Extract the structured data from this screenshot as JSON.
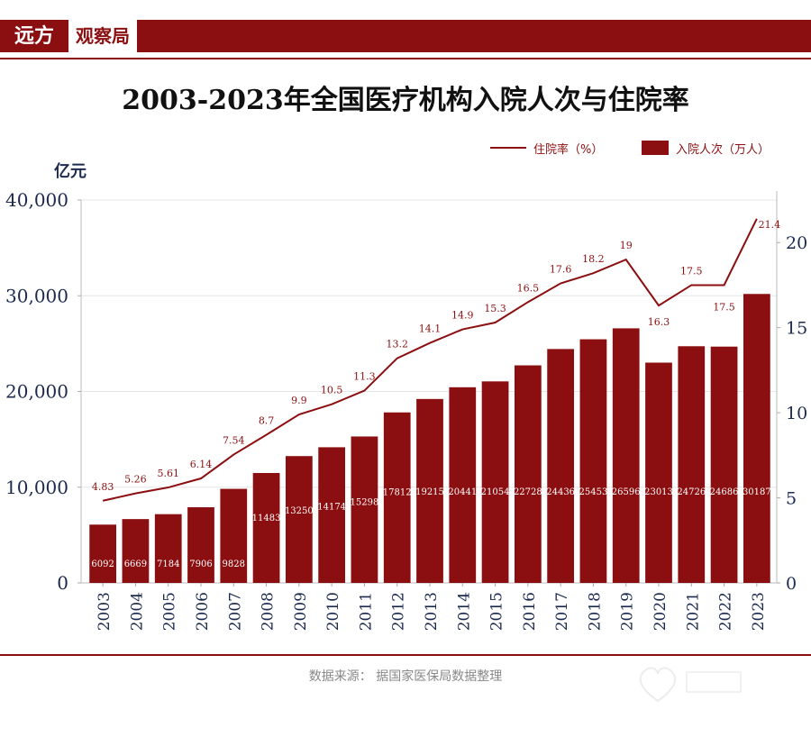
{
  "brand": {
    "part1": "远方",
    "part2": "观察局"
  },
  "legend": {
    "line_label": "住院率（%）",
    "bar_label": "入院人次（万人）"
  },
  "unit_label": "亿元",
  "source": "数据来源：  据国家医保局数据整理",
  "colors": {
    "accent": "#8b0f10",
    "axis_text": "#1b2a4e"
  },
  "chart_data": {
    "type": "bar",
    "title": "2003-2023年全国医疗机构入院人次与住院率",
    "categories": [
      "2003",
      "2004",
      "2005",
      "2006",
      "2007",
      "2008",
      "2009",
      "2010",
      "2011",
      "2012",
      "2013",
      "2014",
      "2015",
      "2016",
      "2017",
      "2018",
      "2019",
      "2020",
      "2021",
      "2022",
      "2023"
    ],
    "series": [
      {
        "name": "入院人次（万人）",
        "type": "bar",
        "axis": "left",
        "values": [
          6092,
          6669,
          7184,
          7906,
          9828,
          11483,
          13250,
          14174,
          15298,
          17812,
          19215,
          20441,
          21054,
          22728,
          24436,
          25453,
          26596,
          23013,
          24726,
          24686,
          30187
        ]
      },
      {
        "name": "住院率（%）",
        "type": "line",
        "axis": "right",
        "values": [
          4.83,
          5.26,
          5.61,
          6.14,
          7.54,
          8.7,
          9.9,
          10.5,
          11.3,
          13.2,
          14.1,
          14.9,
          15.3,
          16.5,
          17.6,
          18.2,
          19,
          16.3,
          17.5,
          17.5,
          21.4
        ]
      }
    ],
    "y_left": {
      "ylim": [
        0,
        40000
      ],
      "ticks": [
        "0",
        "10,000",
        "20,000",
        "30,000",
        "40,000"
      ],
      "tick_values": [
        0,
        10000,
        20000,
        30000,
        40000
      ]
    },
    "y_right": {
      "ylim": [
        0,
        22.5
      ],
      "ticks": [
        "0",
        "5",
        "10",
        "15",
        "20"
      ],
      "tick_values": [
        0,
        5,
        10,
        15,
        20
      ]
    },
    "grid": true,
    "legend_position": "top-right"
  }
}
